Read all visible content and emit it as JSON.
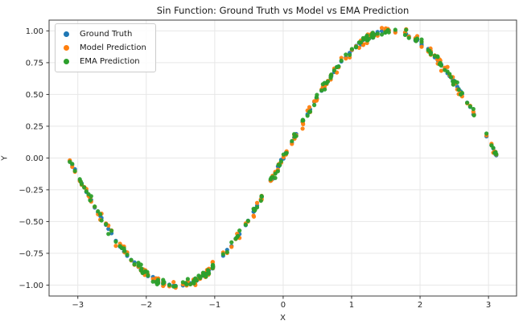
{
  "chart_data": {
    "type": "scatter",
    "title": "Sin Function: Ground Truth vs Model vs EMA Prediction",
    "xlabel": "X",
    "ylabel": "Y",
    "xlim": [
      -3.42,
      3.41
    ],
    "ylim": [
      -1.086,
      1.085
    ],
    "xticks": [
      {
        "v": -3,
        "label": "−3"
      },
      {
        "v": -2,
        "label": "−2"
      },
      {
        "v": -1,
        "label": "−1"
      },
      {
        "v": 0,
        "label": "0"
      },
      {
        "v": 1,
        "label": "1"
      },
      {
        "v": 2,
        "label": "2"
      },
      {
        "v": 3,
        "label": "3"
      }
    ],
    "yticks": [
      {
        "v": 1.0,
        "label": "1.00"
      },
      {
        "v": 0.75,
        "label": "0.75"
      },
      {
        "v": 0.5,
        "label": "0.50"
      },
      {
        "v": 0.25,
        "label": "0.25"
      },
      {
        "v": 0.0,
        "label": "0.00"
      },
      {
        "v": -0.25,
        "label": "−0.25"
      },
      {
        "v": -0.5,
        "label": "−0.50"
      },
      {
        "v": -0.75,
        "label": "−0.75"
      },
      {
        "v": -1.0,
        "label": "−1.00"
      }
    ],
    "grid": true,
    "grid_color": "#e7e7e7",
    "spine_color": "#3d3d3d",
    "tick_color": "#333333",
    "tick_label_color": "#262626",
    "legend_position": "upper left",
    "series": [
      {
        "name": "Ground Truth",
        "color": "#1f77b4",
        "noise_std": 0.006
      },
      {
        "name": "Model Prediction",
        "color": "#ff7f0e",
        "noise_std": 0.02
      },
      {
        "name": "EMA Prediction",
        "color": "#2ca02c",
        "noise_std": 0.016
      }
    ],
    "points_spec": {
      "base_function": "sin",
      "x_range": [
        -3.14159,
        3.14159
      ],
      "n_points": 200,
      "shared_x": true,
      "seed": 42,
      "marker_radius": 2.6,
      "marker_alpha": 0.95
    }
  }
}
